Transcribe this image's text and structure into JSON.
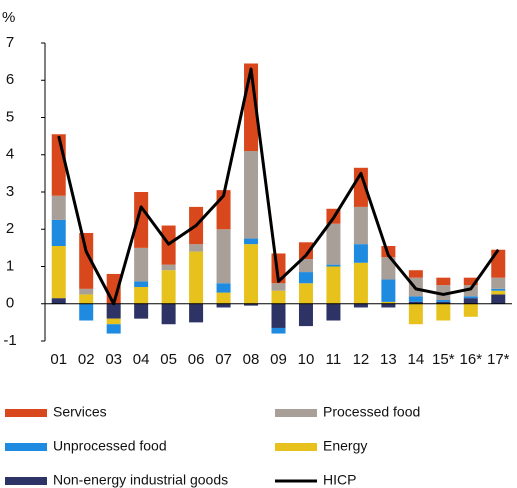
{
  "chart_data": {
    "type": "bar",
    "y_unit": "%",
    "categories": [
      "01",
      "02",
      "03",
      "04",
      "05",
      "06",
      "07",
      "08",
      "09",
      "10",
      "11",
      "12",
      "13",
      "14",
      "15*",
      "16*",
      "17*"
    ],
    "ylim": [
      -1,
      7
    ],
    "yticks": [
      -1,
      0,
      1,
      2,
      3,
      4,
      5,
      6,
      7
    ],
    "series": [
      {
        "name": "Services",
        "color": "#d9481c",
        "values": [
          1.65,
          1.5,
          0.8,
          1.5,
          1.05,
          1.0,
          1.05,
          2.35,
          0.8,
          0.45,
          0.4,
          1.05,
          0.3,
          0.2,
          0.2,
          0.2,
          0.75
        ]
      },
      {
        "name": "Processed food",
        "color": "#a89f98",
        "values": [
          0.65,
          0.15,
          0,
          0.9,
          0.15,
          0.2,
          1.45,
          2.35,
          0.2,
          0.35,
          1.1,
          1.0,
          0.6,
          0.5,
          0.4,
          0.3,
          0.3
        ]
      },
      {
        "name": "Unprocessed food",
        "color": "#1e8ae0",
        "values": [
          0.7,
          -0.45,
          -0.25,
          0.15,
          0,
          0,
          0.25,
          0.15,
          -0.15,
          0.3,
          0.05,
          0.5,
          0.6,
          0.15,
          0.05,
          0.05,
          0.05
        ]
      },
      {
        "name": "Energy",
        "color": "#e8c21c",
        "values": [
          1.4,
          0.25,
          -0.15,
          0.45,
          0.9,
          1.4,
          0.3,
          1.6,
          0.35,
          0.55,
          1.0,
          1.1,
          0.05,
          -0.55,
          -0.45,
          -0.35,
          0.1
        ]
      },
      {
        "name": "Non-energy industrial goods",
        "color": "#2d3465",
        "values": [
          0.15,
          0,
          -0.4,
          -0.4,
          -0.55,
          -0.5,
          -0.1,
          -0.05,
          -0.65,
          -0.6,
          -0.45,
          -0.1,
          -0.1,
          0.05,
          0.05,
          0.15,
          0.25
        ]
      },
      {
        "name": "HICP",
        "color": "#000000",
        "type": "line",
        "values": [
          4.5,
          1.4,
          0,
          2.6,
          1.6,
          2.1,
          2.9,
          6.3,
          0.6,
          1.3,
          2.3,
          3.5,
          1.3,
          0.4,
          0.25,
          0.4,
          1.45
        ]
      }
    ]
  }
}
